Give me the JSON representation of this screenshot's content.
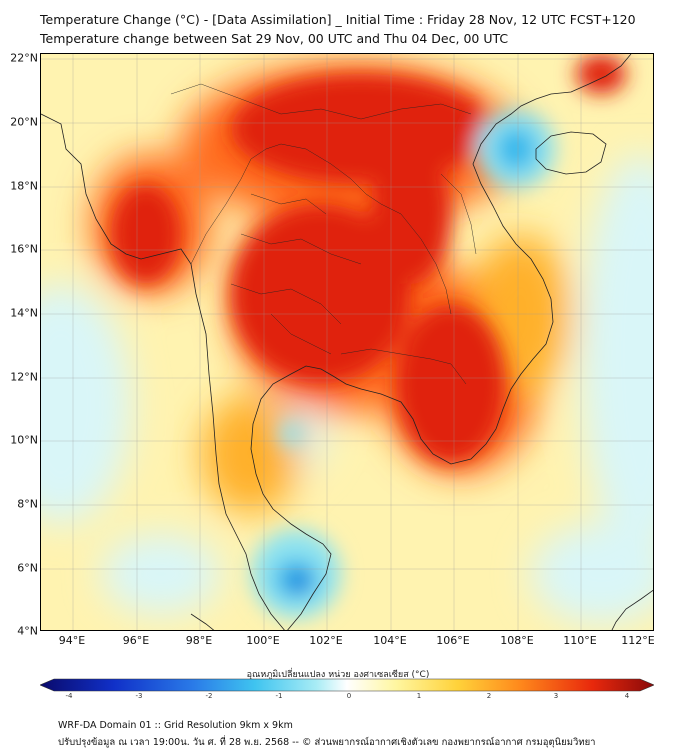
{
  "header": {
    "title_line1": "Temperature Change (°C) - [Data Assimilation] _ Initial Time : Friday 28 Nov, 12 UTC FCST+120",
    "title_line2": "Temperature change between Sat 29 Nov, 00 UTC and Thu 04 Dec, 00 UTC"
  },
  "map": {
    "lat_labels": [
      "22°N",
      "20°N",
      "18°N",
      "16°N",
      "14°N",
      "12°N",
      "10°N",
      "8°N",
      "6°N",
      "4°N"
    ],
    "lon_labels": [
      "94°E",
      "96°E",
      "98°E",
      "100°E",
      "102°E",
      "104°E",
      "106°E",
      "108°E",
      "110°E",
      "112°E"
    ],
    "field_colors": {
      "strong_warm": "#e0230b",
      "warm": "#ff6a1a",
      "mild_warm": "#ffb02a",
      "slight_warm": "#ffe35a",
      "neutral": "#fff8c0",
      "slight_cool": "#d9f6f8",
      "cool": "#8fe3f0",
      "cold": "#35b8ec",
      "very_cold": "#1a6fd8"
    },
    "coastline_color": "#222222"
  },
  "colorbar": {
    "title": "อุณหภูมิเปลี่ยนแปลง หน่วย องศาเซลเซียส (°C)",
    "ticks": [
      "-4",
      "-3",
      "-2",
      "-1",
      "0",
      "1",
      "2",
      "3",
      "4"
    ],
    "range": [
      -4,
      4
    ],
    "stops": [
      "#0a0a6b",
      "#1030c8",
      "#2a7be8",
      "#3fc4f0",
      "#a8ecf5",
      "#ffffff",
      "#fff6a0",
      "#ffd23a",
      "#ff8a1c",
      "#e8280c",
      "#8a0a0a"
    ]
  },
  "footer": {
    "line1": "WRF-DA Domain 01 :: Grid Resolution 9km x 9km",
    "line2": "ปรับปรุงข้อมูล ณ เวลา 19:00น. วัน ศ. ที่ 28 พ.ย. 2568 -- © ส่วนพยากรณ์อากาศเชิงตัวเลข กองพยากรณ์อากาศ กรมอุตุนิยมวิทยา"
  }
}
